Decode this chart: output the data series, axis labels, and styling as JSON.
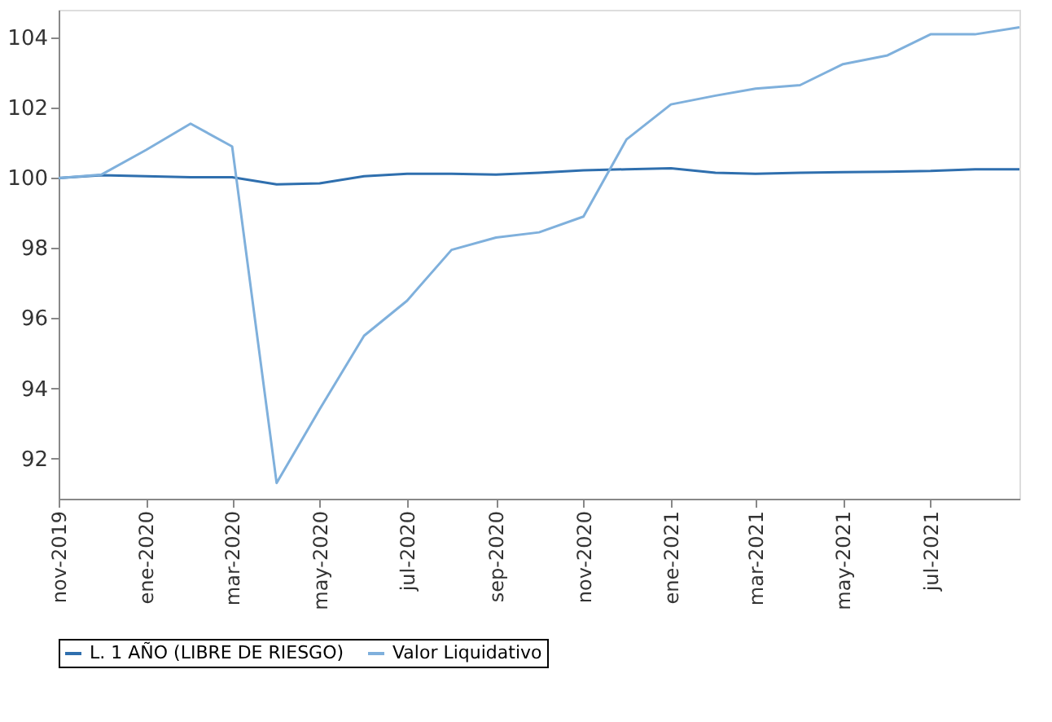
{
  "chart_data": {
    "type": "line",
    "x": [
      "2019-11",
      "2019-12",
      "2020-01",
      "2020-02",
      "2020-03",
      "2020-04",
      "2020-05",
      "2020-06",
      "2020-07",
      "2020-08",
      "2020-09",
      "2020-10",
      "2020-11",
      "2020-12",
      "2021-01",
      "2021-02",
      "2021-03",
      "2021-04",
      "2021-05",
      "2021-06",
      "2021-07",
      "2021-08",
      "2021-09"
    ],
    "series": [
      {
        "name": "L. 1 AÑO (LIBRE DE RIESGO)",
        "color": "#2f6fae",
        "values": [
          100,
          100.08,
          100.05,
          100.02,
          100.02,
          99.82,
          99.85,
          100.05,
          100.12,
          100.12,
          100.1,
          100.15,
          100.22,
          100.25,
          100.28,
          100.15,
          100.12,
          100.15,
          100.17,
          100.18,
          100.2,
          100.25,
          100.25
        ]
      },
      {
        "name": "Valor Liquidativo",
        "color": "#7fb0dc",
        "values": [
          100,
          100.1,
          100.8,
          101.55,
          100.9,
          91.3,
          93.4,
          95.5,
          96.5,
          97.95,
          98.3,
          98.45,
          98.9,
          101.1,
          102.1,
          102.35,
          102.55,
          102.65,
          103.25,
          103.5,
          104.1,
          104.1,
          104.3
        ]
      }
    ],
    "xlim": [
      "2019-11",
      "2021-09"
    ],
    "xticks": [
      {
        "value": "2019-11",
        "label": "nov-2019"
      },
      {
        "value": "2020-01",
        "label": "ene-2020"
      },
      {
        "value": "2020-03",
        "label": "mar-2020"
      },
      {
        "value": "2020-05",
        "label": "may-2020"
      },
      {
        "value": "2020-07",
        "label": "jul-2020"
      },
      {
        "value": "2020-09",
        "label": "sep-2020"
      },
      {
        "value": "2020-11",
        "label": "nov-2020"
      },
      {
        "value": "2021-01",
        "label": "ene-2021"
      },
      {
        "value": "2021-03",
        "label": "mar-2021"
      },
      {
        "value": "2021-05",
        "label": "may-2021"
      },
      {
        "value": "2021-07",
        "label": "jul-2021"
      }
    ],
    "ylim": [
      90.85,
      104.8
    ],
    "yticks": [
      92,
      94,
      96,
      98,
      100,
      102,
      104
    ],
    "grid": false,
    "legend": "bottom",
    "marker": "none",
    "line_style": "solid"
  }
}
